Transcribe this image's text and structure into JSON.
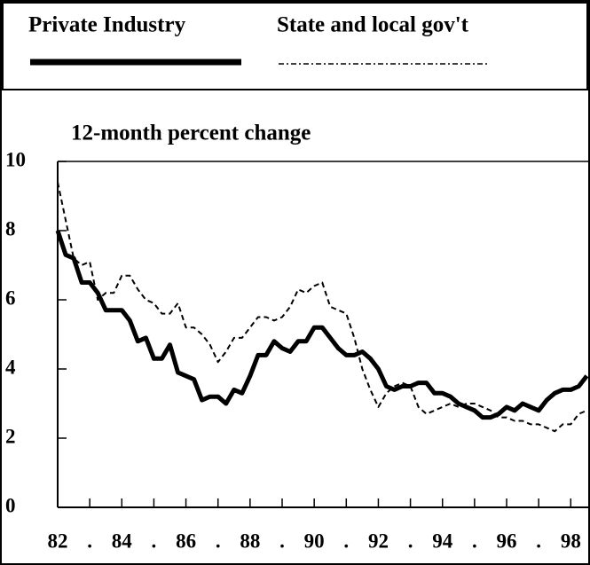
{
  "chart_data": {
    "type": "line",
    "title": "12-month percent change",
    "x": [
      1982,
      1982.25,
      1982.5,
      1982.75,
      1983,
      1983.25,
      1983.5,
      1983.75,
      1984,
      1984.25,
      1984.5,
      1984.75,
      1985,
      1985.25,
      1985.5,
      1985.75,
      1986,
      1986.25,
      1986.5,
      1986.75,
      1987,
      1987.25,
      1987.5,
      1987.75,
      1988,
      1988.25,
      1988.5,
      1988.75,
      1989,
      1989.25,
      1989.5,
      1989.75,
      1990,
      1990.25,
      1990.5,
      1990.75,
      1991,
      1991.25,
      1991.5,
      1991.75,
      1992,
      1992.25,
      1992.5,
      1992.75,
      1993,
      1993.25,
      1993.5,
      1993.75,
      1994,
      1994.25,
      1994.5,
      1994.75,
      1995,
      1995.25,
      1995.5,
      1995.75,
      1996,
      1996.25,
      1996.5,
      1996.75,
      1997,
      1997.25,
      1997.5,
      1997.75,
      1998,
      1998.25,
      1998.5
    ],
    "series": [
      {
        "name": "Private Industry",
        "color": "#000000",
        "style": "solid",
        "values": [
          8.0,
          7.3,
          7.2,
          6.5,
          6.5,
          6.2,
          5.7,
          5.7,
          5.7,
          5.4,
          4.8,
          4.9,
          4.3,
          4.3,
          4.7,
          3.9,
          3.8,
          3.7,
          3.1,
          3.2,
          3.2,
          3.0,
          3.4,
          3.3,
          3.8,
          4.4,
          4.4,
          4.8,
          4.6,
          4.5,
          4.8,
          4.8,
          5.2,
          5.2,
          4.9,
          4.6,
          4.4,
          4.4,
          4.5,
          4.3,
          4.0,
          3.5,
          3.4,
          3.5,
          3.5,
          3.6,
          3.6,
          3.3,
          3.3,
          3.2,
          3.0,
          2.9,
          2.8,
          2.6,
          2.6,
          2.7,
          2.9,
          2.8,
          3.0,
          2.9,
          2.8,
          3.1,
          3.3,
          3.4,
          3.4,
          3.5,
          3.8
        ]
      },
      {
        "name": "State and local gov't",
        "color": "#000000",
        "style": "dashed",
        "values": [
          9.4,
          8.3,
          7.2,
          7.0,
          7.1,
          6.0,
          6.2,
          6.2,
          6.7,
          6.7,
          6.3,
          6.0,
          5.9,
          5.6,
          5.6,
          5.9,
          5.2,
          5.2,
          5.0,
          4.7,
          4.2,
          4.5,
          4.9,
          4.9,
          5.2,
          5.5,
          5.5,
          5.4,
          5.5,
          5.8,
          6.3,
          6.2,
          6.4,
          6.5,
          5.8,
          5.7,
          5.6,
          4.9,
          4.0,
          3.4,
          2.9,
          3.3,
          3.5,
          3.6,
          3.5,
          2.9,
          2.7,
          2.8,
          2.9,
          3.0,
          2.9,
          3.0,
          3.0,
          2.9,
          2.8,
          2.6,
          2.6,
          2.5,
          2.5,
          2.4,
          2.4,
          2.3,
          2.2,
          2.4,
          2.4,
          2.7,
          2.8
        ]
      }
    ],
    "xlim": [
      1982,
      1998.6
    ],
    "xticks": [
      {
        "value": 1982,
        "label": "82"
      },
      {
        "value": 1983,
        "label": "."
      },
      {
        "value": 1984,
        "label": "84"
      },
      {
        "value": 1985,
        "label": "."
      },
      {
        "value": 1986,
        "label": "86"
      },
      {
        "value": 1987,
        "label": "."
      },
      {
        "value": 1988,
        "label": "88"
      },
      {
        "value": 1989,
        "label": "."
      },
      {
        "value": 1990,
        "label": "90"
      },
      {
        "value": 1991,
        "label": "."
      },
      {
        "value": 1992,
        "label": "92"
      },
      {
        "value": 1993,
        "label": "."
      },
      {
        "value": 1994,
        "label": "94"
      },
      {
        "value": 1995,
        "label": "."
      },
      {
        "value": 1996,
        "label": "96"
      },
      {
        "value": 1997,
        "label": "."
      },
      {
        "value": 1998,
        "label": "98"
      }
    ],
    "ylim": [
      0,
      10
    ],
    "yticks": [
      0,
      2,
      4,
      6,
      8,
      10
    ],
    "grid": false,
    "legend": "top"
  }
}
